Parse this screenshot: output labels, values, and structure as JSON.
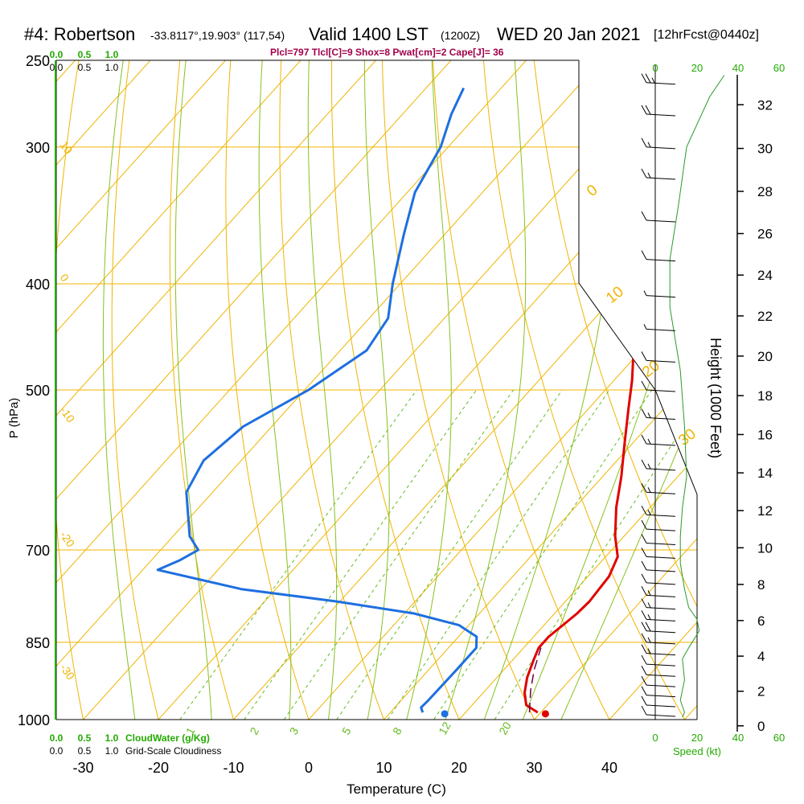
{
  "header": {
    "station": "#4: Robertson",
    "coords": "-33.8117°,19.903° (117,54)",
    "valid": "Valid 1400 LST",
    "utc": "(1200Z)",
    "date": "WED 20 Jan 2021",
    "forecast": "[12hrFcst@0440z]",
    "indices": "Plcl=797 Tlcl[C]=9 Shox=8 Pwat[cm]=2 Cape[J]= 36"
  },
  "chart_data": {
    "type": "line",
    "subtype": "skew-T log-P sounding",
    "xlabel": "Temperature (C)",
    "ylabel": "P (hPa)",
    "y2label": "Height (1000 Feet)",
    "x_ticks": [
      -30,
      -20,
      -10,
      0,
      10,
      20,
      30,
      40
    ],
    "p_ticks": [
      250,
      300,
      400,
      500,
      700,
      850,
      1000
    ],
    "height_ticks_kft": [
      0,
      2,
      4,
      6,
      8,
      10,
      12,
      14,
      16,
      18,
      20,
      22,
      24,
      26,
      28,
      30,
      32
    ],
    "xlim": [
      -34,
      46
    ],
    "plim": [
      1000,
      250
    ],
    "series": [
      {
        "name": "Temperature",
        "color": "#e00000",
        "points": [
          {
            "p": 985,
            "t": 29.6
          },
          {
            "p": 970,
            "t": 27.2
          },
          {
            "p": 945,
            "t": 25.5
          },
          {
            "p": 915,
            "t": 24.0
          },
          {
            "p": 880,
            "t": 22.7
          },
          {
            "p": 860,
            "t": 22.0
          },
          {
            "p": 840,
            "t": 22.0
          },
          {
            "p": 820,
            "t": 22.5
          },
          {
            "p": 800,
            "t": 23.0
          },
          {
            "p": 780,
            "t": 23.2
          },
          {
            "p": 760,
            "t": 23.0
          },
          {
            "p": 740,
            "t": 22.8
          },
          {
            "p": 710,
            "t": 21.6
          },
          {
            "p": 680,
            "t": 18.8
          },
          {
            "p": 640,
            "t": 15.5
          },
          {
            "p": 600,
            "t": 12.5
          },
          {
            "p": 560,
            "t": 9.0
          },
          {
            "p": 520,
            "t": 5.3
          },
          {
            "p": 490,
            "t": 2.4
          },
          {
            "p": 460,
            "t": -1.0
          },
          {
            "p": 430,
            "t": -5.6
          },
          {
            "p": 400,
            "t": -10.7
          },
          {
            "p": 370,
            "t": -15.8
          },
          {
            "p": 340,
            "t": -21.4
          },
          {
            "p": 310,
            "t": -28.0
          },
          {
            "p": 290,
            "t": -32.5
          },
          {
            "p": 265,
            "t": -38.8
          }
        ]
      },
      {
        "name": "Dewpoint",
        "color": "#1e6fe0",
        "points": [
          {
            "p": 985,
            "t": 14.3
          },
          {
            "p": 975,
            "t": 13.5
          },
          {
            "p": 960,
            "t": 13.6
          },
          {
            "p": 900,
            "t": 13.7
          },
          {
            "p": 860,
            "t": 13.7
          },
          {
            "p": 840,
            "t": 12.4
          },
          {
            "p": 820,
            "t": 8.7
          },
          {
            "p": 800,
            "t": 1.3
          },
          {
            "p": 780,
            "t": -10.5
          },
          {
            "p": 760,
            "t": -24.6
          },
          {
            "p": 730,
            "t": -38.0
          },
          {
            "p": 715,
            "t": -36.2
          },
          {
            "p": 700,
            "t": -35.0
          },
          {
            "p": 680,
            "t": -37.8
          },
          {
            "p": 620,
            "t": -43.5
          },
          {
            "p": 580,
            "t": -45.0
          },
          {
            "p": 540,
            "t": -43.8
          },
          {
            "p": 500,
            "t": -39.5
          },
          {
            "p": 460,
            "t": -36.5
          },
          {
            "p": 430,
            "t": -37.5
          },
          {
            "p": 400,
            "t": -41.0
          },
          {
            "p": 360,
            "t": -45.5
          },
          {
            "p": 330,
            "t": -49.0
          },
          {
            "p": 300,
            "t": -51.0
          },
          {
            "p": 280,
            "t": -53.5
          },
          {
            "p": 265,
            "t": -55.0
          }
        ]
      },
      {
        "name": "Parcel",
        "color": "#6a0040",
        "points": [
          {
            "p": 985,
            "t": 28.5
          },
          {
            "p": 940,
            "t": 26.0
          },
          {
            "p": 900,
            "t": 24.0
          },
          {
            "p": 860,
            "t": 22.3
          }
        ]
      }
    ],
    "surface_markers": [
      {
        "name": "surface temperature",
        "p": 988,
        "t": 30.8,
        "color": "#e00000"
      },
      {
        "name": "surface dewpoint",
        "p": 988,
        "t": 17.4,
        "color": "#1e6fe0"
      }
    ],
    "isotherm_labels": [
      "30",
      "20",
      "10",
      "0"
    ],
    "mixing_ratio_labels": [
      "1",
      "2",
      "3",
      "5",
      "8",
      "12",
      "20"
    ],
    "dry_adiabat_labels": [
      "10",
      "0",
      "-10",
      "-20",
      "-30"
    ],
    "cloud_scale": {
      "labels_green": [
        "0.0",
        "0.5",
        "1.0"
      ],
      "labels_black": [
        "0.0",
        "0.5",
        "1.0"
      ],
      "bottom_green_caption": "CloudWater (g/Kg)",
      "bottom_black_caption": "Grid-Scale Cloudiness"
    },
    "wind_speed_scale": {
      "ticks": [
        "0",
        "20",
        "40",
        "60"
      ],
      "caption": "Speed (kt)",
      "profile": [
        {
          "p": 995,
          "s": 13
        },
        {
          "p": 985,
          "s": 14
        },
        {
          "p": 960,
          "s": 12
        },
        {
          "p": 920,
          "s": 14
        },
        {
          "p": 880,
          "s": 13
        },
        {
          "p": 860,
          "s": 16
        },
        {
          "p": 830,
          "s": 21
        },
        {
          "p": 810,
          "s": 20
        },
        {
          "p": 790,
          "s": 16
        },
        {
          "p": 760,
          "s": 14
        },
        {
          "p": 720,
          "s": 12
        },
        {
          "p": 680,
          "s": 12
        },
        {
          "p": 640,
          "s": 13
        },
        {
          "p": 600,
          "s": 15
        },
        {
          "p": 540,
          "s": 14
        },
        {
          "p": 480,
          "s": 12
        },
        {
          "p": 420,
          "s": 7
        },
        {
          "p": 380,
          "s": 7
        },
        {
          "p": 340,
          "s": 11
        },
        {
          "p": 300,
          "s": 15
        },
        {
          "p": 270,
          "s": 26
        },
        {
          "p": 258,
          "s": 33
        }
      ]
    },
    "wind_barbs": [
      {
        "p": 990,
        "s": 10
      },
      {
        "p": 970,
        "s": 10
      },
      {
        "p": 950,
        "s": 10
      },
      {
        "p": 930,
        "s": 10
      },
      {
        "p": 910,
        "s": 10
      },
      {
        "p": 890,
        "s": 10
      },
      {
        "p": 870,
        "s": 15
      },
      {
        "p": 850,
        "s": 15
      },
      {
        "p": 830,
        "s": 20
      },
      {
        "p": 810,
        "s": 15
      },
      {
        "p": 790,
        "s": 15
      },
      {
        "p": 770,
        "s": 15
      },
      {
        "p": 750,
        "s": 10
      },
      {
        "p": 730,
        "s": 10
      },
      {
        "p": 710,
        "s": 10
      },
      {
        "p": 690,
        "s": 10
      },
      {
        "p": 670,
        "s": 10
      },
      {
        "p": 650,
        "s": 15
      },
      {
        "p": 620,
        "s": 15
      },
      {
        "p": 590,
        "s": 15
      },
      {
        "p": 560,
        "s": 15
      },
      {
        "p": 530,
        "s": 15
      },
      {
        "p": 500,
        "s": 10
      },
      {
        "p": 470,
        "s": 10
      },
      {
        "p": 440,
        "s": 5
      },
      {
        "p": 410,
        "s": 5
      },
      {
        "p": 380,
        "s": 10
      },
      {
        "p": 350,
        "s": 10
      },
      {
        "p": 320,
        "s": 15
      },
      {
        "p": 300,
        "s": 15
      },
      {
        "p": 280,
        "s": 20
      },
      {
        "p": 262,
        "s": 25
      }
    ],
    "colors": {
      "isobar": "#f0b400",
      "isotherm": "#f0b400",
      "dry_adiabat": "#f0b400",
      "moist_adiabat": "#88c020",
      "mixing_ratio": "#66bb22",
      "green_text": "#22aa00",
      "indices_text": "#a0004a"
    }
  }
}
